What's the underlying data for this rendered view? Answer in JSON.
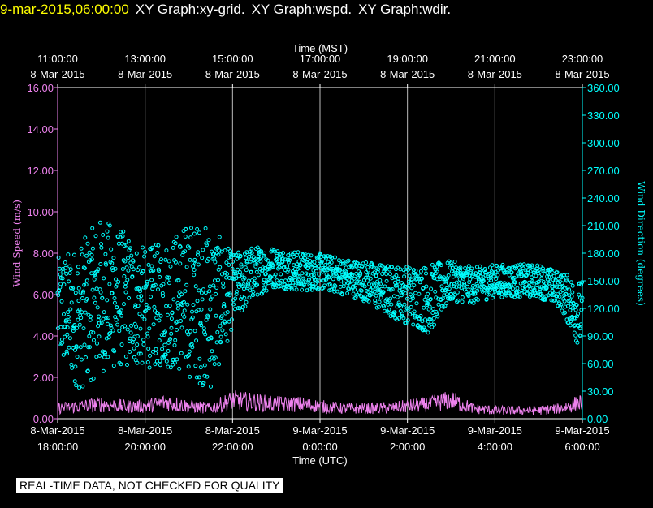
{
  "header": {
    "timestamp": "9-mar-2015,06:00:00",
    "graphs": [
      "XY Graph:xy-grid.",
      "XY Graph:wspd.",
      "XY Graph:wdir."
    ],
    "timestamp_color": "#ffff00",
    "graph_color": "#ffffff"
  },
  "footer": {
    "disclaimer": "REAL-TIME DATA, NOT CHECKED FOR QUALITY"
  },
  "chart_data": {
    "type": "scatter",
    "title": "",
    "top_axis": {
      "label": "Time (MST)",
      "ticks": [
        {
          "time": "11:00:00",
          "date": "8-Mar-2015"
        },
        {
          "time": "13:00:00",
          "date": "8-Mar-2015"
        },
        {
          "time": "15:00:00",
          "date": "8-Mar-2015"
        },
        {
          "time": "17:00:00",
          "date": "8-Mar-2015"
        },
        {
          "time": "19:00:00",
          "date": "8-Mar-2015"
        },
        {
          "time": "21:00:00",
          "date": "8-Mar-2015"
        },
        {
          "time": "23:00:00",
          "date": "8-Mar-2015"
        }
      ]
    },
    "bottom_axis": {
      "label": "Time (UTC)",
      "ticks": [
        {
          "date": "8-Mar-2015",
          "time": "18:00:00"
        },
        {
          "date": "8-Mar-2015",
          "time": "20:00:00"
        },
        {
          "date": "8-Mar-2015",
          "time": "22:00:00"
        },
        {
          "date": "9-Mar-2015",
          "time": "0:00:00"
        },
        {
          "date": "9-Mar-2015",
          "time": "2:00:00"
        },
        {
          "date": "9-Mar-2015",
          "time": "4:00:00"
        },
        {
          "date": "9-Mar-2015",
          "time": "6:00:00"
        }
      ]
    },
    "xlim_utc_hours": [
      18,
      30
    ],
    "left_axis": {
      "label": "Wind Speed (m/s)",
      "ylim": [
        0,
        16
      ],
      "ticks": [
        "0.00",
        "2.00",
        "4.00",
        "6.00",
        "8.00",
        "10.00",
        "12.00",
        "14.00",
        "16.00"
      ]
    },
    "right_axis": {
      "label": "Wind Direction (degrees)",
      "ylim": [
        0,
        360
      ],
      "ticks": [
        "0.00",
        "30.00",
        "60.00",
        "90.00",
        "120.00",
        "150.00",
        "180.00",
        "210.00",
        "240.00",
        "270.00",
        "300.00",
        "330.00",
        "360.00"
      ]
    },
    "grid": "vertical",
    "series": [
      {
        "axis": "left",
        "color": "#ee82ee",
        "style": "line",
        "x_utc_hours": [
          18,
          18.5,
          19,
          19.5,
          20,
          20.5,
          21,
          21.5,
          22,
          22.5,
          23,
          23.5,
          24,
          24.5,
          25,
          25.5,
          26,
          26.5,
          27,
          27.5,
          28,
          28.5,
          29,
          29.5,
          30
        ],
        "values": [
          0.5,
          0.6,
          0.7,
          0.6,
          0.6,
          0.8,
          0.6,
          0.5,
          0.9,
          0.8,
          0.7,
          0.7,
          0.6,
          0.5,
          0.5,
          0.5,
          0.6,
          0.7,
          0.9,
          0.5,
          0.4,
          0.4,
          0.4,
          0.5,
          0.8
        ]
      },
      {
        "axis": "right",
        "color": "#00ffff",
        "style": "scatter",
        "x_utc_hours": [
          18,
          18.5,
          19,
          19.5,
          20,
          20.5,
          21,
          21.5,
          22,
          22.5,
          23,
          23.5,
          24,
          24.5,
          25,
          25.5,
          26,
          26.5,
          27,
          27.5,
          28,
          28.5,
          29,
          29.5,
          30
        ],
        "values": [
          120,
          110,
          135,
          130,
          120,
          125,
          130,
          120,
          140,
          160,
          165,
          160,
          160,
          155,
          150,
          140,
          135,
          130,
          150,
          145,
          150,
          150,
          150,
          140,
          110
        ],
        "spread": [
          55,
          80,
          85,
          75,
          65,
          70,
          85,
          90,
          40,
          28,
          22,
          22,
          20,
          20,
          22,
          28,
          32,
          38,
          22,
          20,
          18,
          18,
          18,
          20,
          40
        ]
      }
    ]
  }
}
